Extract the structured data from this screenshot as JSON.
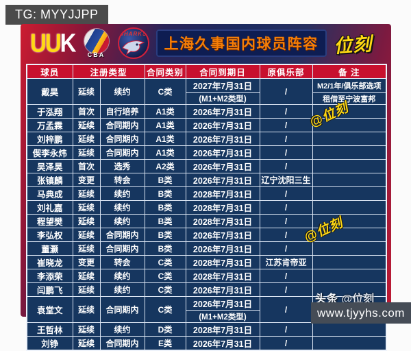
{
  "page": {
    "tg_badge": "TG: MYYJJPP",
    "footer_url": "www.tjyyhs.com"
  },
  "banner": {
    "brand_logo_uu": "UU",
    "brand_logo_k": "K",
    "cba_label": "CBA",
    "sharks_label": "SHARKS",
    "title": "上海久事国内球员阵容",
    "weike_logo": "位刻"
  },
  "watermarks": {
    "stamp": "@位刻",
    "credit_prefix": "头条",
    "credit_handle": "@位刻"
  },
  "table": {
    "headers": {
      "player": "球员",
      "reg_type": "注册类型",
      "contract_class": "合同类别",
      "expiry": "合同到期日",
      "former_club": "原俱乐部",
      "remark": "备 注"
    },
    "rows": [
      {
        "name": "戴昊",
        "reg1": "延续",
        "reg2": "续约",
        "cls": "C类",
        "date": "2027年7月31日",
        "date2": "(M1+M2类型)",
        "club": "/",
        "note": "M2/1年/俱乐部选项",
        "note2": "租借至宁波富邦"
      },
      {
        "name": "于泓翔",
        "reg1": "首次",
        "reg2": "自行培养",
        "cls": "A1类",
        "date": "2026年7月31日",
        "club": "/",
        "note": ""
      },
      {
        "name": "万孟霖",
        "reg1": "延续",
        "reg2": "合同期内",
        "cls": "A1类",
        "date": "2026年7月31日",
        "club": "/",
        "note": ""
      },
      {
        "name": "刘梓鹏",
        "reg1": "延续",
        "reg2": "合同期内",
        "cls": "A1类",
        "date": "2026年7月31日",
        "club": "/",
        "note": ""
      },
      {
        "name": "偰李永炜",
        "reg1": "延续",
        "reg2": "合同期内",
        "cls": "A1类",
        "date": "2026年7月31日",
        "club": "/",
        "note": ""
      },
      {
        "name": "吴泽昊",
        "reg1": "首次",
        "reg2": "选秀",
        "cls": "A2类",
        "date": "2026年7月31日",
        "club": "/",
        "note": ""
      },
      {
        "name": "张镇麟",
        "reg1": "变更",
        "reg2": "转会",
        "cls": "B类",
        "date": "2026年7月31日",
        "club": "辽宁沈阳三生",
        "note": ""
      },
      {
        "name": "马典成",
        "reg1": "延续",
        "reg2": "续约",
        "cls": "B类",
        "date": "2028年7月31日",
        "club": "/",
        "note": ""
      },
      {
        "name": "刘礼嘉",
        "reg1": "延续",
        "reg2": "续约",
        "cls": "B类",
        "date": "2028年7月31日",
        "club": "/",
        "note": ""
      },
      {
        "name": "程望樊",
        "reg1": "延续",
        "reg2": "续约",
        "cls": "B类",
        "date": "2028年7月31日",
        "club": "/",
        "note": ""
      },
      {
        "name": "李弘权",
        "reg1": "延续",
        "reg2": "合同期内",
        "cls": "B类",
        "date": "2026年7月31日",
        "club": "/",
        "note": ""
      },
      {
        "name": "董灏",
        "reg1": "延续",
        "reg2": "合同期内",
        "cls": "B类",
        "date": "2026年7月31日",
        "club": "/",
        "note": ""
      },
      {
        "name": "崔晓龙",
        "reg1": "变更",
        "reg2": "转会",
        "cls": "C类",
        "date": "2028年7月31日",
        "club": "江苏肯帝亚",
        "note": ""
      },
      {
        "name": "李添荣",
        "reg1": "延续",
        "reg2": "续约",
        "cls": "C类",
        "date": "2028年7月31日",
        "club": "/",
        "note": ""
      },
      {
        "name": "闫鹏飞",
        "reg1": "延续",
        "reg2": "续约",
        "cls": "C类",
        "date": "2026年7月31日",
        "club": "/",
        "note": ""
      },
      {
        "name": "袁堂文",
        "reg1": "延续",
        "reg2": "合同期内",
        "cls": "C类",
        "date": "2026年7月31日",
        "date2": "(M1+M2类型)",
        "club": "/",
        "note": "M2/1年/俱乐部选项"
      },
      {
        "name": "王哲林",
        "reg1": "延续",
        "reg2": "续约",
        "cls": "D类",
        "date": "2028年7月31日",
        "club": "/",
        "note": ""
      },
      {
        "name": "刘铮",
        "reg1": "延续",
        "reg2": "合同期内",
        "cls": "E类",
        "date": "2026年7月31日",
        "club": "/",
        "note": ""
      }
    ]
  }
}
